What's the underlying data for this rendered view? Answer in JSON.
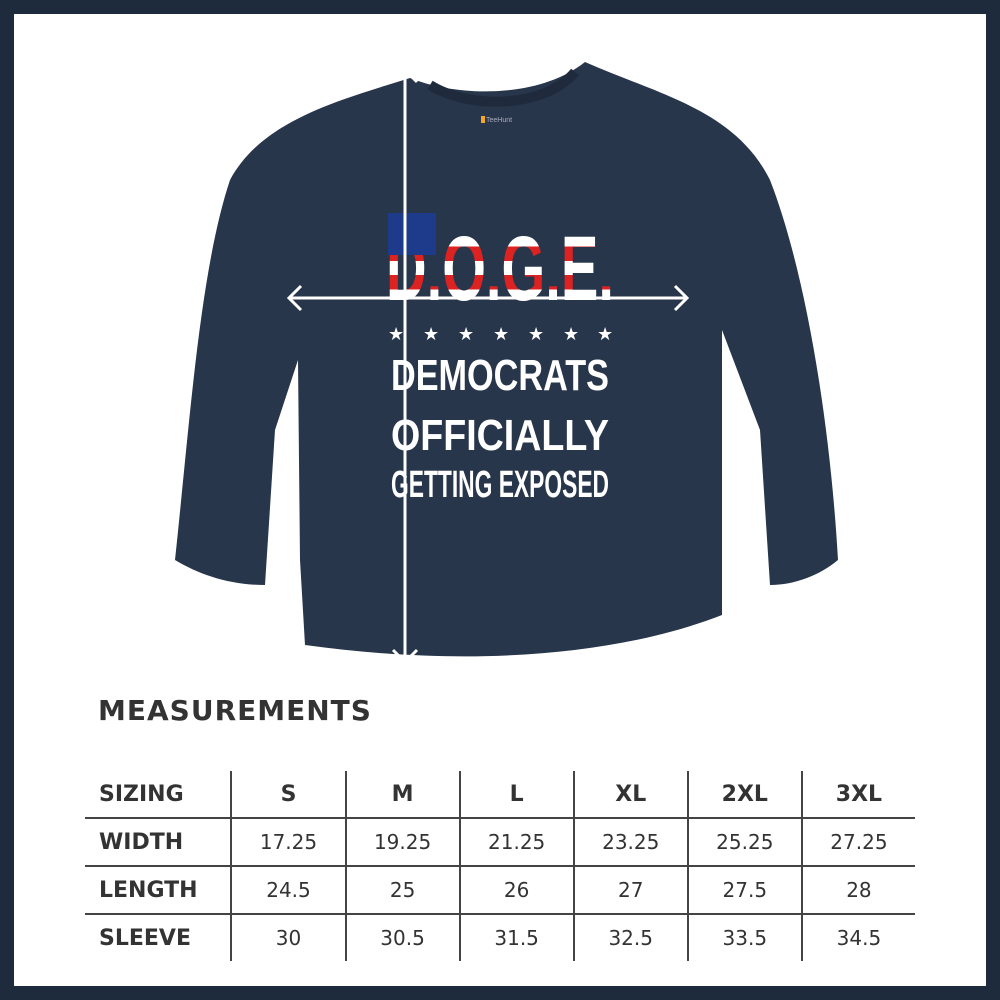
{
  "product": {
    "tag_brand": "TeeHunt",
    "print": {
      "logo": "D.O.G.E.",
      "line1": "DEMOCRATS",
      "line2": "OFFICIALLY",
      "line3": "GETTING EXPOSED"
    },
    "shirt_color": "#28364b"
  },
  "measurements": {
    "title": "MEASUREMENTS",
    "header": [
      "SIZING",
      "S",
      "M",
      "L",
      "XL",
      "2XL",
      "3XL"
    ],
    "rows": [
      [
        "WIDTH",
        "17.25",
        "19.25",
        "21.25",
        "23.25",
        "25.25",
        "27.25"
      ],
      [
        "LENGTH",
        "24.5",
        "25",
        "26",
        "27",
        "27.5",
        "28"
      ],
      [
        "SLEEVE",
        "30",
        "30.5",
        "31.5",
        "32.5",
        "33.5",
        "34.5"
      ]
    ]
  }
}
